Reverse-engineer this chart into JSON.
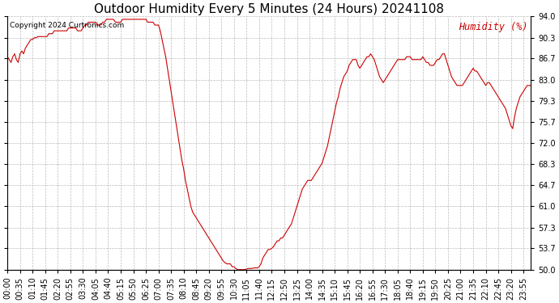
{
  "title": "Outdoor Humidity Every 5 Minutes (24 Hours) 20241108",
  "copyright": "Copyright 2024 Curtronics.com",
  "legend_label": "Humidity (%)",
  "line_color": "#cc0000",
  "legend_color": "#cc0000",
  "copyright_color": "#000000",
  "background_color": "#ffffff",
  "grid_color": "#aaaaaa",
  "ylim": [
    50.0,
    94.0
  ],
  "yticks": [
    50.0,
    53.7,
    57.3,
    61.0,
    64.7,
    68.3,
    72.0,
    75.7,
    79.3,
    83.0,
    86.7,
    90.3,
    94.0
  ],
  "title_fontsize": 11,
  "tick_fontsize": 7,
  "humidity_data": [
    87.0,
    86.5,
    86.0,
    87.0,
    87.5,
    86.5,
    86.0,
    87.5,
    88.0,
    87.5,
    88.5,
    89.0,
    89.5,
    90.0,
    90.0,
    90.3,
    90.3,
    90.5,
    90.5,
    90.5,
    90.5,
    90.5,
    90.5,
    91.0,
    91.0,
    91.0,
    91.5,
    91.5,
    91.5,
    91.5,
    91.5,
    91.5,
    91.5,
    91.5,
    92.0,
    92.0,
    92.0,
    92.0,
    92.0,
    91.5,
    91.5,
    91.5,
    92.0,
    92.5,
    92.5,
    93.0,
    93.0,
    93.0,
    93.0,
    93.0,
    92.5,
    92.5,
    92.5,
    93.0,
    93.0,
    93.5,
    93.5,
    93.5,
    93.5,
    93.5,
    93.0,
    93.0,
    93.0,
    93.0,
    93.5,
    93.5,
    93.5,
    93.5,
    93.5,
    93.5,
    93.5,
    93.5,
    93.5,
    93.5,
    93.5,
    93.5,
    93.5,
    93.5,
    93.0,
    93.0,
    93.0,
    93.0,
    92.5,
    92.5,
    92.5,
    91.5,
    90.0,
    88.5,
    87.0,
    85.0,
    83.0,
    81.0,
    79.0,
    77.0,
    75.0,
    73.0,
    71.0,
    69.0,
    67.5,
    65.5,
    64.0,
    62.5,
    61.0,
    60.0,
    59.5,
    59.0,
    58.5,
    58.0,
    57.5,
    57.0,
    56.5,
    56.0,
    55.5,
    55.0,
    54.5,
    54.0,
    53.5,
    53.0,
    52.5,
    52.0,
    51.5,
    51.2,
    51.0,
    51.0,
    51.0,
    50.5,
    50.5,
    50.2,
    50.0,
    50.0,
    50.0,
    50.0,
    50.0,
    50.1,
    50.2,
    50.2,
    50.2,
    50.3,
    50.3,
    50.3,
    50.5,
    51.0,
    52.0,
    52.5,
    53.0,
    53.5,
    53.5,
    53.7,
    54.0,
    54.5,
    55.0,
    55.0,
    55.5,
    55.5,
    56.0,
    56.5,
    57.0,
    57.5,
    58.0,
    59.0,
    60.0,
    61.0,
    62.0,
    63.0,
    64.0,
    64.5,
    65.0,
    65.5,
    65.5,
    65.5,
    66.0,
    66.5,
    67.0,
    67.5,
    68.0,
    68.5,
    69.5,
    70.5,
    71.5,
    73.0,
    74.5,
    76.0,
    77.5,
    79.0,
    80.0,
    81.5,
    82.5,
    83.5,
    84.0,
    84.5,
    85.5,
    86.0,
    86.5,
    86.5,
    86.5,
    85.5,
    85.0,
    85.5,
    86.0,
    86.5,
    87.0,
    87.0,
    87.5,
    87.0,
    86.5,
    85.5,
    84.5,
    83.5,
    83.0,
    82.5,
    83.0,
    83.5,
    84.0,
    84.5,
    85.0,
    85.5,
    86.0,
    86.5,
    86.5,
    86.5,
    86.5,
    86.5,
    87.0,
    87.0,
    87.0,
    86.5,
    86.5,
    86.5,
    86.5,
    86.5,
    86.5,
    87.0,
    86.5,
    86.0,
    86.0,
    85.5,
    85.5,
    85.5,
    86.0,
    86.5,
    86.5,
    87.0,
    87.5,
    87.5,
    86.5,
    85.5,
    84.5,
    83.5,
    83.0,
    82.5,
    82.0,
    82.0,
    82.0,
    82.0,
    82.5,
    83.0,
    83.5,
    84.0,
    84.5,
    85.0,
    84.5,
    84.5,
    84.0,
    83.5,
    83.0,
    82.5,
    82.0,
    82.5,
    82.5,
    82.0,
    81.5,
    81.0,
    80.5,
    80.0,
    79.5,
    79.0,
    78.5,
    78.0,
    77.0,
    76.0,
    75.0,
    74.5,
    76.5,
    78.0,
    79.0,
    80.0,
    80.5,
    81.0,
    81.5,
    82.0,
    82.0,
    82.0
  ],
  "x_tick_step": 7,
  "x_tick_labels": [
    "00:00",
    "00:35",
    "01:10",
    "01:45",
    "02:20",
    "02:55",
    "03:30",
    "04:05",
    "04:40",
    "05:15",
    "05:50",
    "06:25",
    "07:00",
    "07:35",
    "08:10",
    "08:45",
    "09:20",
    "09:55",
    "10:30",
    "11:05",
    "11:40",
    "12:15",
    "12:50",
    "13:25",
    "14:00",
    "14:35",
    "15:10",
    "15:45",
    "16:20",
    "16:55",
    "17:30",
    "18:05",
    "18:40",
    "19:15",
    "19:50",
    "20:25",
    "21:00",
    "21:35",
    "22:10",
    "22:45",
    "23:20",
    "23:55"
  ]
}
